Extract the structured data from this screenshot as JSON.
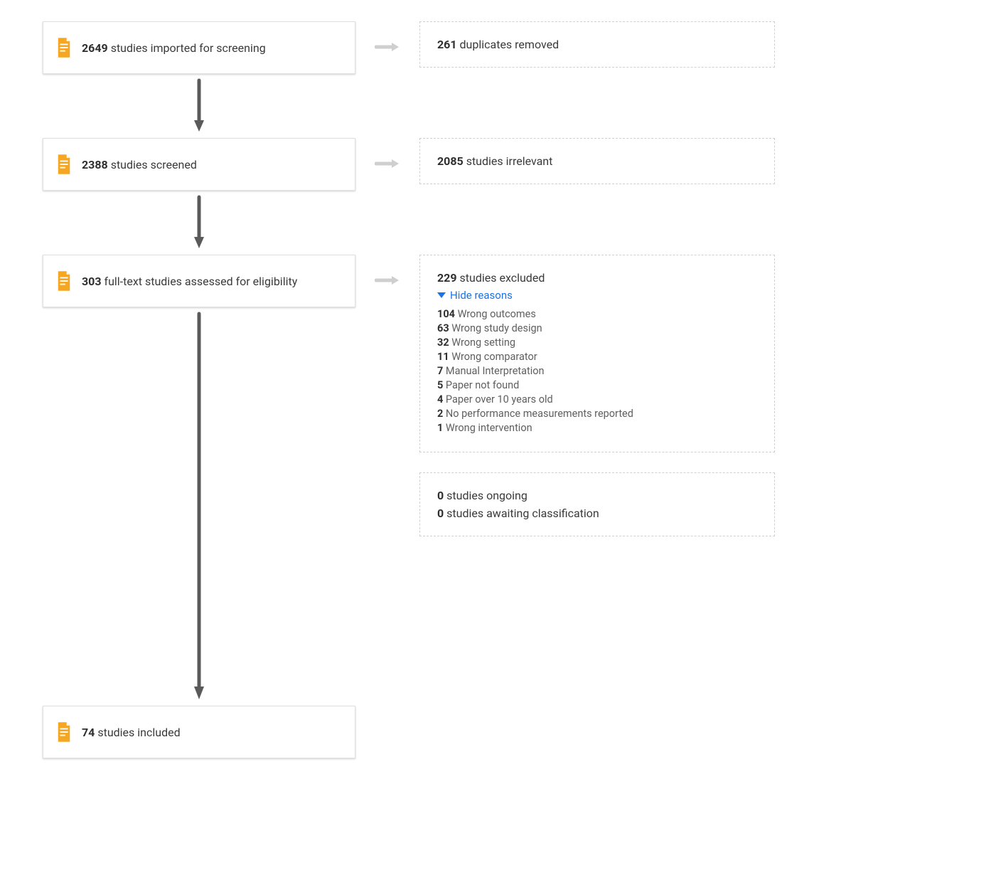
{
  "type": "flowchart",
  "colors": {
    "icon": "#f5a623",
    "arrow_dark": "#5a5a5a",
    "arrow_light": "#cfcfcf",
    "box_border": "#e0e0e0",
    "dashed_border": "#d0d0d0",
    "text": "#3a3a3a",
    "text_muted": "#5f5f5f",
    "link": "#1a73e8",
    "background": "#ffffff"
  },
  "stages": [
    {
      "count": "2649",
      "label": "studies imported for screening"
    },
    {
      "count": "2388",
      "label": "studies screened"
    },
    {
      "count": "303",
      "label": "full-text studies assessed for eligibility"
    },
    {
      "count": "74",
      "label": "studies included"
    }
  ],
  "sides": [
    {
      "count": "261",
      "label": "duplicates removed"
    },
    {
      "count": "2085",
      "label": "studies irrelevant"
    }
  ],
  "excluded": {
    "count": "229",
    "label": "studies excluded",
    "toggle_label": "Hide reasons",
    "reasons": [
      {
        "count": "104",
        "label": "Wrong outcomes"
      },
      {
        "count": "63",
        "label": "Wrong study design"
      },
      {
        "count": "32",
        "label": "Wrong setting"
      },
      {
        "count": "11",
        "label": "Wrong comparator"
      },
      {
        "count": "7",
        "label": "Manual Interpretation"
      },
      {
        "count": "5",
        "label": "Paper not found"
      },
      {
        "count": "4",
        "label": "Paper over 10 years old"
      },
      {
        "count": "2",
        "label": "No performance measurements reported"
      },
      {
        "count": "1",
        "label": "Wrong intervention"
      }
    ]
  },
  "ongoing": {
    "count": "0",
    "label": "studies ongoing"
  },
  "awaiting": {
    "count": "0",
    "label": "studies awaiting classification"
  }
}
